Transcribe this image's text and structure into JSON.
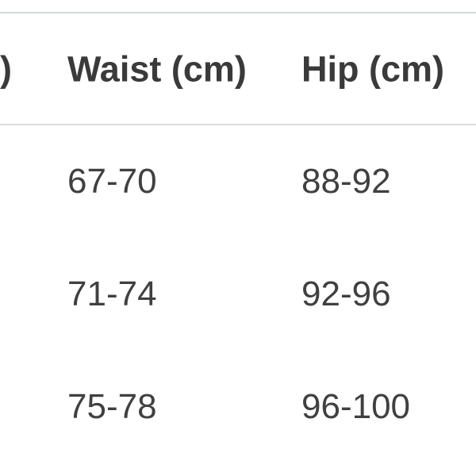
{
  "table": {
    "header": {
      "partial_left": ")",
      "waist": "Waist (cm)",
      "hip": "Hip (cm)"
    },
    "rows": [
      {
        "waist": "67-70",
        "hip": "88-92"
      },
      {
        "waist": "71-74",
        "hip": "92-96"
      },
      {
        "waist": "75-78",
        "hip": "96-100"
      }
    ]
  },
  "colors": {
    "background": "#ffffff",
    "top_rule": "#d2d7da",
    "header_rule": "#d9dbdc",
    "header_text": "#3a3a3a",
    "cell_text": "#404040"
  }
}
